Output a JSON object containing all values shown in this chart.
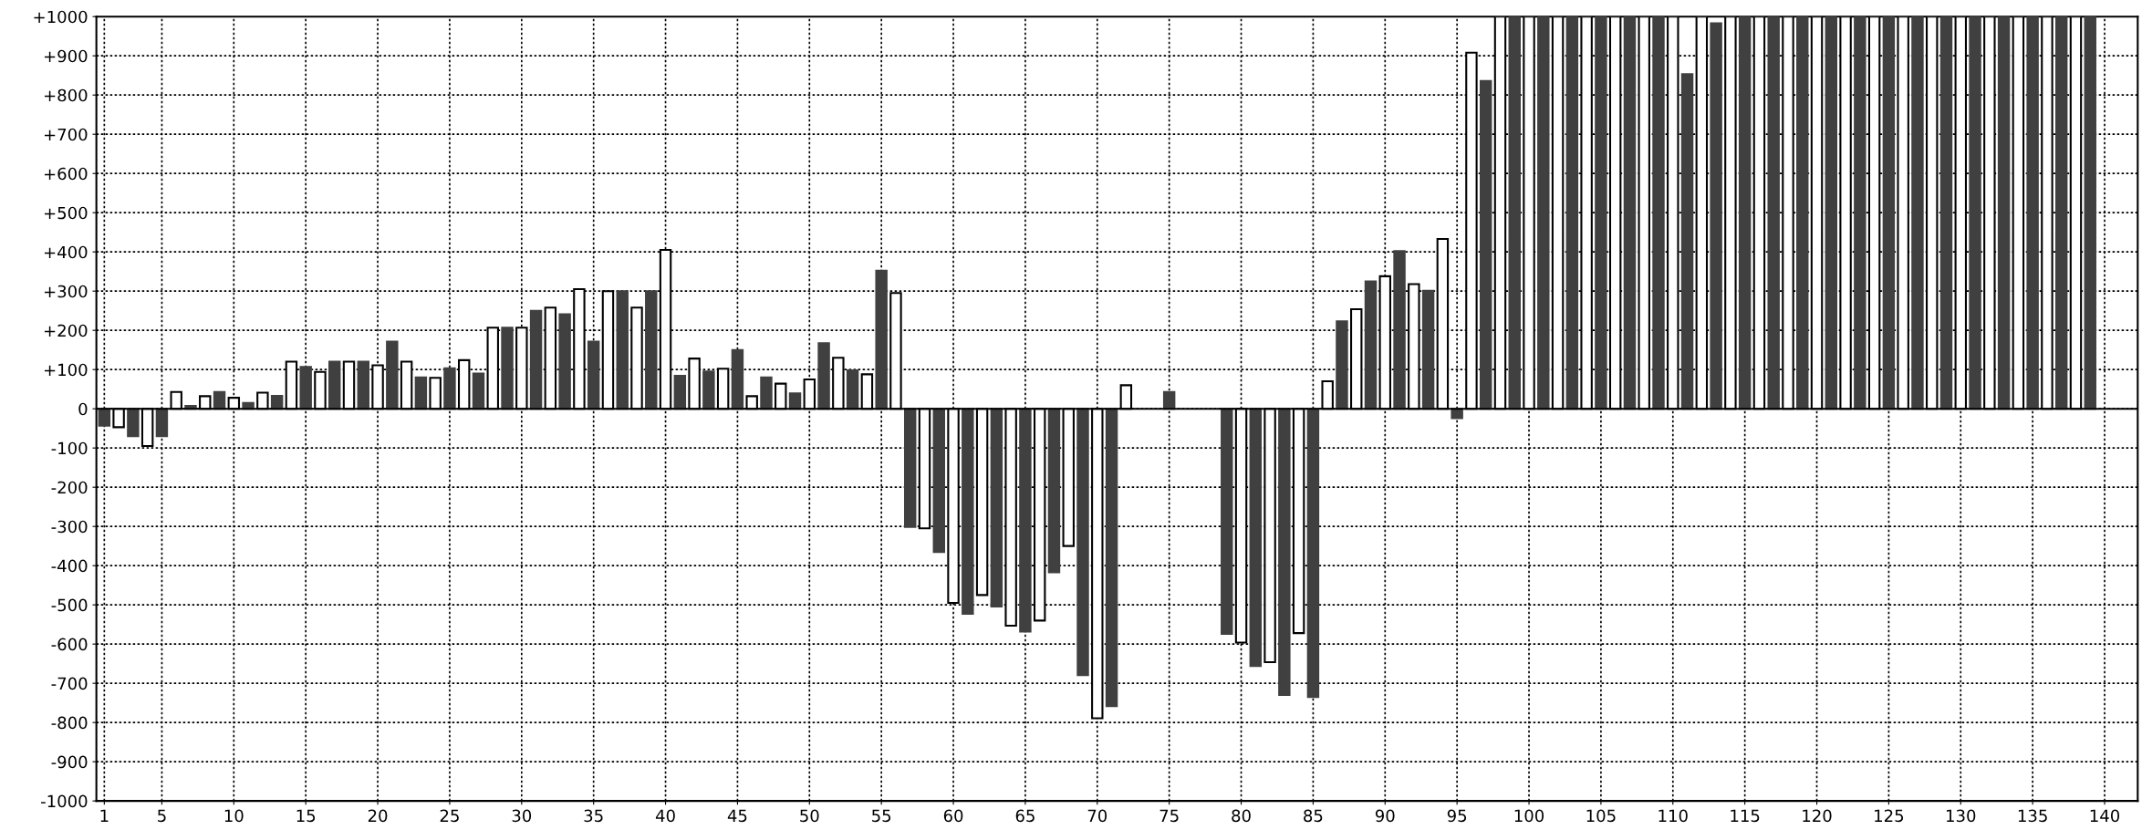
{
  "chart_data": {
    "type": "bar",
    "xlim": [
      0.45,
      142.3
    ],
    "xticks": [
      1,
      5,
      10,
      15,
      20,
      25,
      30,
      35,
      40,
      45,
      50,
      55,
      60,
      65,
      70,
      75,
      80,
      85,
      90,
      95,
      100,
      105,
      110,
      115,
      120,
      125,
      130,
      135,
      140
    ],
    "ylim": [
      -1000,
      1000
    ],
    "yticks": [
      {
        "value": -1000,
        "label": "-1000"
      },
      {
        "value": -900,
        "label": "-900"
      },
      {
        "value": -800,
        "label": "-800"
      },
      {
        "value": -700,
        "label": "-700"
      },
      {
        "value": -600,
        "label": "-600"
      },
      {
        "value": -500,
        "label": "-500"
      },
      {
        "value": -400,
        "label": "-400"
      },
      {
        "value": -300,
        "label": "-300"
      },
      {
        "value": -200,
        "label": "-200"
      },
      {
        "value": -100,
        "label": "-100"
      },
      0,
      {
        "value": 100,
        "label": "+100"
      },
      {
        "value": 200,
        "label": "+200"
      },
      {
        "value": 300,
        "label": "+300"
      },
      {
        "value": 400,
        "label": "+400"
      },
      {
        "value": 500,
        "label": "+500"
      },
      {
        "value": 600,
        "label": "+600"
      },
      {
        "value": 700,
        "label": "+700"
      },
      {
        "value": 800,
        "label": "+800"
      },
      {
        "value": 900,
        "label": "+900"
      },
      {
        "value": 1000,
        "label": "+1000"
      }
    ],
    "grid": true,
    "ref_lines": [
      {
        "axis": "y",
        "value": 0,
        "color": "#000000"
      }
    ],
    "series": [
      {
        "color": "#404040",
        "x": [
          1,
          3,
          5,
          7,
          9,
          11,
          13,
          15,
          17,
          19,
          21,
          23,
          25,
          27,
          29,
          31,
          33,
          35,
          37,
          39,
          41,
          43,
          45,
          47,
          49,
          51,
          53,
          55,
          57,
          59,
          61,
          63,
          65,
          67,
          69,
          71,
          73,
          75,
          77,
          79,
          81,
          83,
          85,
          87,
          89,
          91,
          93,
          95,
          97,
          99,
          101,
          103,
          105,
          107,
          109,
          111,
          113,
          115,
          117,
          119,
          121,
          123,
          125,
          127,
          129,
          131,
          133,
          135,
          137,
          139
        ],
        "values": [
          -43,
          -70,
          -70,
          7,
          43,
          15,
          33,
          107,
          120,
          120,
          171,
          80,
          103,
          90,
          207,
          250,
          241,
          171,
          300,
          300,
          84,
          95,
          150,
          80,
          39,
          167,
          98,
          352,
          -301,
          -365,
          -523,
          -504,
          -568,
          -417,
          -679,
          -758,
          null,
          43,
          null,
          -574,
          -656,
          -730,
          -735,
          223,
          325,
          402,
          301,
          -24,
          836,
          1000,
          1000,
          1000,
          1000,
          1000,
          1000,
          853,
          983,
          1000,
          1000,
          1000,
          1000,
          1000,
          1000,
          1000,
          1000,
          1000,
          1000,
          1000,
          1000,
          1000
        ]
      },
      {
        "color": "#ffffff",
        "x": [
          2,
          4,
          6,
          8,
          10,
          12,
          14,
          16,
          18,
          20,
          22,
          24,
          26,
          28,
          30,
          32,
          34,
          36,
          38,
          40,
          42,
          44,
          46,
          48,
          50,
          52,
          54,
          56,
          58,
          60,
          62,
          64,
          66,
          68,
          70,
          72,
          74,
          76,
          78,
          80,
          82,
          84,
          86,
          88,
          90,
          92,
          94,
          96,
          98,
          100,
          102,
          104,
          106,
          108,
          110,
          112,
          114,
          116,
          118,
          120,
          122,
          124,
          126,
          128,
          130,
          132,
          134,
          136,
          138
        ],
        "values": [
          -47,
          -95,
          43,
          32,
          28,
          41,
          120,
          94,
          120,
          111,
          120,
          79,
          124,
          207,
          207,
          258,
          305,
          300,
          258,
          405,
          128,
          102,
          32,
          64,
          75,
          130,
          88,
          295,
          -305,
          -495,
          -475,
          -553,
          -540,
          -350,
          -789,
          60,
          null,
          null,
          null,
          -596,
          -646,
          -572,
          70,
          254,
          338,
          318,
          433,
          908,
          1000,
          1000,
          1000,
          1000,
          1000,
          1000,
          1000,
          1000,
          1000,
          1000,
          1000,
          1000,
          1000,
          1000,
          1000,
          1000,
          1000,
          1000,
          1000,
          1000,
          1000
        ]
      }
    ]
  }
}
